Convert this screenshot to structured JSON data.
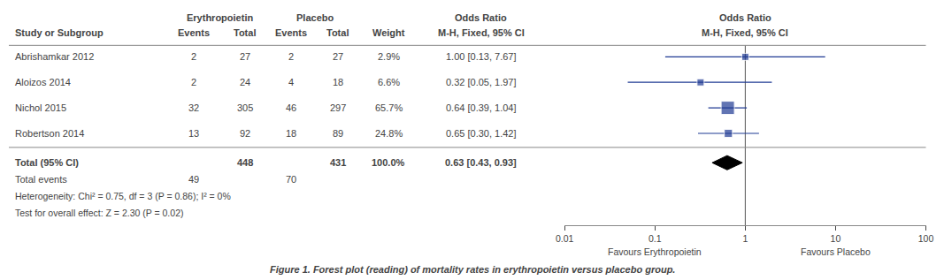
{
  "chart_data": {
    "type": "forest",
    "title": "Odds Ratio",
    "subtitle": "M-H, Fixed, 95% CI",
    "caption": "Figure 1. Forest plot (reading) of mortality rates in erythropoietin versus placebo group.",
    "x_label_left": "Favours Erythropoietin",
    "x_label_right": "Favours Placebo",
    "log": "x",
    "xlim": [
      0.01,
      100
    ],
    "xticks": [
      0.01,
      0.1,
      1,
      10,
      100
    ],
    "tick_labels": "x",
    "grid": false,
    "reference_line": 1,
    "categories": [
      "Abrishamkar 2012",
      "Aloizos 2014",
      "Nichol 2015",
      "Robertson 2014"
    ],
    "values": [
      1.0,
      0.32,
      0.64,
      0.65
    ],
    "ci_lo": [
      0.13,
      0.05,
      0.39,
      0.3
    ],
    "ci_hi": [
      7.67,
      1.97,
      1.04,
      1.42
    ],
    "value_labels": [
      "1.00 [0.13, 7.67]",
      "0.32 [0.05, 1.97]",
      "0.64 [0.39, 1.04]",
      "0.65 [0.30, 1.42]"
    ],
    "weights": [
      2.9,
      6.6,
      65.7,
      24.8
    ],
    "weight_labels": [
      "2.9%",
      "6.6%",
      "65.7%",
      "24.8%"
    ],
    "color": "#1F3A93",
    "marker": "square",
    "table": {
      "group_headers": [
        "Erythropoietin",
        "Placebo",
        "Odds Ratio"
      ],
      "columns": [
        "Study or Subgroup",
        "Events",
        "Total",
        "Events",
        "Total",
        "Weight",
        "M-H, Fixed, 95% CI"
      ],
      "epo_events": [
        2,
        2,
        32,
        13
      ],
      "epo_total": [
        27,
        24,
        305,
        92
      ],
      "pbo_events": [
        2,
        4,
        46,
        18
      ],
      "pbo_total": [
        27,
        18,
        297,
        89
      ],
      "notes": [
        "Heterogeneity: Chi² = 0.75, df = 3 (P = 0.86); I² = 0%",
        "Test for overall effect: Z = 2.30 (P = 0.02)"
      ]
    },
    "total": {
      "label": "Total (95% CI)",
      "epo_total": 448,
      "pbo_total": 431,
      "weight_label": "100.0%",
      "value": 0.63,
      "ci_lo": 0.43,
      "ci_hi": 0.93,
      "value_label": "0.63 [0.43, 0.93]",
      "events_label": "Total events",
      "epo_events": 49,
      "pbo_events": 70,
      "color": "#000000",
      "marker": "diamond"
    }
  }
}
